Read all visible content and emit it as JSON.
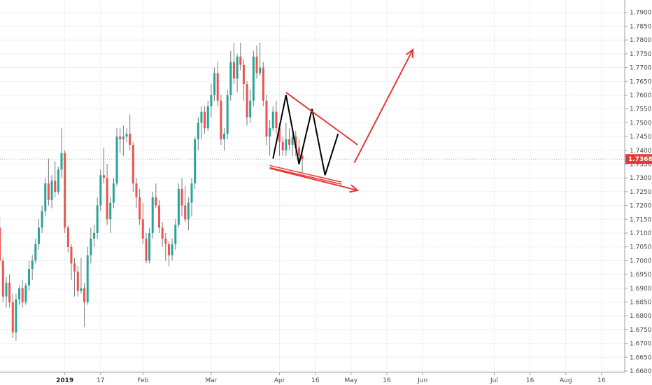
{
  "chart_data": {
    "type": "candlestick",
    "title": "",
    "xlabel": "",
    "ylabel": "",
    "grid": true,
    "ylim": [
      1.6595,
      1.7945
    ],
    "y_ticks": [
      "1.79000",
      "1.78500",
      "1.78000",
      "1.77500",
      "1.77000",
      "1.76500",
      "1.76000",
      "1.75500",
      "1.75000",
      "1.74500",
      "1.74000",
      "1.73500",
      "1.73000",
      "1.72500",
      "1.72000",
      "1.71500",
      "1.71000",
      "1.70500",
      "1.70000",
      "1.69500",
      "1.69000",
      "1.68500",
      "1.68000",
      "1.67500",
      "1.67000",
      "1.66500",
      "1.66000"
    ],
    "x_ticks": [
      {
        "label": "2019",
        "index": 21,
        "bold": true
      },
      {
        "label": "17",
        "index": 32
      },
      {
        "label": "Feb",
        "index": 45
      },
      {
        "label": "Mar",
        "index": 66
      },
      {
        "label": "Apr",
        "index": 87
      },
      {
        "label": "16",
        "index": 98
      },
      {
        "label": "May",
        "index": 109
      },
      {
        "label": "16",
        "index": 120
      },
      {
        "label": "Jun",
        "index": 131
      },
      {
        "label": "Jul",
        "index": 153
      },
      {
        "label": "16",
        "index": 164
      },
      {
        "label": "Aug",
        "index": 175
      },
      {
        "label": "16",
        "index": 186
      }
    ],
    "last_price": {
      "label": "1.73684",
      "value": 1.73684,
      "color": "#e53935"
    },
    "colors": {
      "up": "#26a69a",
      "down": "#ef5350",
      "wick": "#7a7a7a",
      "drawing_red": "#e53935",
      "drawing_black": "#000000",
      "grid": "#eef0f3"
    },
    "candles": [
      [
        1.71,
        1.713,
        1.705,
        1.712
      ],
      [
        1.712,
        1.716,
        1.698,
        1.7
      ],
      [
        1.7,
        1.701,
        1.685,
        1.687
      ],
      [
        1.687,
        1.694,
        1.683,
        1.692
      ],
      [
        1.692,
        1.695,
        1.683,
        1.685
      ],
      [
        1.685,
        1.688,
        1.672,
        1.674
      ],
      [
        1.674,
        1.688,
        1.671,
        1.686
      ],
      [
        1.686,
        1.691,
        1.684,
        1.69
      ],
      [
        1.69,
        1.693,
        1.683,
        1.685
      ],
      [
        1.685,
        1.692,
        1.684,
        1.691
      ],
      [
        1.691,
        1.7,
        1.689,
        1.697
      ],
      [
        1.697,
        1.702,
        1.693,
        1.7
      ],
      [
        1.7,
        1.708,
        1.699,
        1.706
      ],
      [
        1.706,
        1.715,
        1.704,
        1.712
      ],
      [
        1.712,
        1.72,
        1.71,
        1.718
      ],
      [
        1.718,
        1.73,
        1.716,
        1.728
      ],
      [
        1.728,
        1.737,
        1.72,
        1.722
      ],
      [
        1.722,
        1.731,
        1.719,
        1.729
      ],
      [
        1.729,
        1.736,
        1.723,
        1.725
      ],
      [
        1.725,
        1.734,
        1.724,
        1.733
      ],
      [
        1.733,
        1.748,
        1.73,
        1.739
      ],
      [
        1.739,
        1.74,
        1.71,
        1.712
      ],
      [
        1.712,
        1.713,
        1.703,
        1.705
      ],
      [
        1.705,
        1.706,
        1.693,
        1.699
      ],
      [
        1.699,
        1.701,
        1.687,
        1.696
      ],
      [
        1.696,
        1.698,
        1.687,
        1.689
      ],
      [
        1.689,
        1.701,
        1.688,
        1.69
      ],
      [
        1.69,
        1.692,
        1.676,
        1.685
      ],
      [
        1.685,
        1.705,
        1.684,
        1.702
      ],
      [
        1.702,
        1.712,
        1.699,
        1.708
      ],
      [
        1.708,
        1.713,
        1.705,
        1.71
      ],
      [
        1.71,
        1.723,
        1.708,
        1.72
      ],
      [
        1.72,
        1.733,
        1.718,
        1.731
      ],
      [
        1.731,
        1.741,
        1.728,
        1.73
      ],
      [
        1.73,
        1.735,
        1.713,
        1.715
      ],
      [
        1.715,
        1.723,
        1.71,
        1.721
      ],
      [
        1.721,
        1.73,
        1.719,
        1.728
      ],
      [
        1.728,
        1.748,
        1.727,
        1.745
      ],
      [
        1.745,
        1.748,
        1.739,
        1.744
      ],
      [
        1.744,
        1.749,
        1.738,
        1.745
      ],
      [
        1.745,
        1.748,
        1.743,
        1.746
      ],
      [
        1.746,
        1.753,
        1.74,
        1.742
      ],
      [
        1.742,
        1.743,
        1.725,
        1.728
      ],
      [
        1.728,
        1.73,
        1.719,
        1.723
      ],
      [
        1.723,
        1.726,
        1.713,
        1.715
      ],
      [
        1.715,
        1.721,
        1.706,
        1.708
      ],
      [
        1.708,
        1.71,
        1.699,
        1.7
      ],
      [
        1.7,
        1.712,
        1.699,
        1.71
      ],
      [
        1.71,
        1.725,
        1.708,
        1.723
      ],
      [
        1.723,
        1.728,
        1.719,
        1.72
      ],
      [
        1.72,
        1.722,
        1.71,
        1.712
      ],
      [
        1.712,
        1.714,
        1.705,
        1.708
      ],
      [
        1.708,
        1.71,
        1.7,
        1.706
      ],
      [
        1.706,
        1.707,
        1.698,
        1.702
      ],
      [
        1.702,
        1.708,
        1.7,
        1.706
      ],
      [
        1.706,
        1.715,
        1.704,
        1.713
      ],
      [
        1.713,
        1.728,
        1.712,
        1.726
      ],
      [
        1.726,
        1.73,
        1.716,
        1.72
      ],
      [
        1.72,
        1.727,
        1.714,
        1.715
      ],
      [
        1.715,
        1.723,
        1.711,
        1.721
      ],
      [
        1.721,
        1.73,
        1.716,
        1.728
      ],
      [
        1.728,
        1.745,
        1.726,
        1.744
      ],
      [
        1.744,
        1.752,
        1.74,
        1.75
      ],
      [
        1.75,
        1.756,
        1.744,
        1.754
      ],
      [
        1.754,
        1.756,
        1.746,
        1.748
      ],
      [
        1.748,
        1.758,
        1.747,
        1.756
      ],
      [
        1.756,
        1.764,
        1.752,
        1.76
      ],
      [
        1.76,
        1.77,
        1.758,
        1.768
      ],
      [
        1.768,
        1.772,
        1.756,
        1.758
      ],
      [
        1.758,
        1.76,
        1.742,
        1.744
      ],
      [
        1.744,
        1.748,
        1.74,
        1.746
      ],
      [
        1.746,
        1.762,
        1.744,
        1.76
      ],
      [
        1.76,
        1.776,
        1.758,
        1.772
      ],
      [
        1.772,
        1.779,
        1.764,
        1.766
      ],
      [
        1.766,
        1.775,
        1.761,
        1.774
      ],
      [
        1.774,
        1.779,
        1.769,
        1.771
      ],
      [
        1.771,
        1.773,
        1.758,
        1.764
      ],
      [
        1.764,
        1.765,
        1.749,
        1.752
      ],
      [
        1.752,
        1.762,
        1.75,
        1.758
      ],
      [
        1.758,
        1.776,
        1.756,
        1.774
      ],
      [
        1.774,
        1.778,
        1.766,
        1.768
      ],
      [
        1.768,
        1.779,
        1.767,
        1.77
      ],
      [
        1.77,
        1.772,
        1.756,
        1.758
      ],
      [
        1.758,
        1.76,
        1.742,
        1.745
      ],
      [
        1.745,
        1.751,
        1.738,
        1.748
      ],
      [
        1.748,
        1.756,
        1.747,
        1.754
      ],
      [
        1.754,
        1.758,
        1.746,
        1.748
      ],
      [
        1.748,
        1.75,
        1.738,
        1.743
      ],
      [
        1.743,
        1.745,
        1.738,
        1.74
      ],
      [
        1.74,
        1.75,
        1.738,
        1.744
      ],
      [
        1.744,
        1.748,
        1.74,
        1.742
      ],
      [
        1.742,
        1.746,
        1.738,
        1.745
      ],
      [
        1.745,
        1.747,
        1.738,
        1.741
      ],
      [
        1.741,
        1.744,
        1.735,
        1.738
      ],
      [
        1.738,
        1.74,
        1.732,
        1.7368
      ]
    ],
    "drawings": {
      "black_zigzag": [
        [
          85,
          1.737
        ],
        [
          89,
          1.76
        ],
        [
          93,
          1.735
        ],
        [
          97,
          1.755
        ],
        [
          101,
          1.731
        ],
        [
          105,
          1.746
        ]
      ],
      "upper_trendline": [
        [
          89,
          1.761
        ],
        [
          111,
          1.742
        ]
      ],
      "lower_trendline_double": [
        [
          84,
          1.7345
        ],
        [
          106,
          1.7285
        ]
      ],
      "arrow_right": [
        [
          84,
          1.7335
        ],
        [
          111,
          1.7255
        ]
      ],
      "arrow_up": [
        [
          110,
          1.7355
        ],
        [
          128,
          1.7765
        ]
      ]
    }
  }
}
